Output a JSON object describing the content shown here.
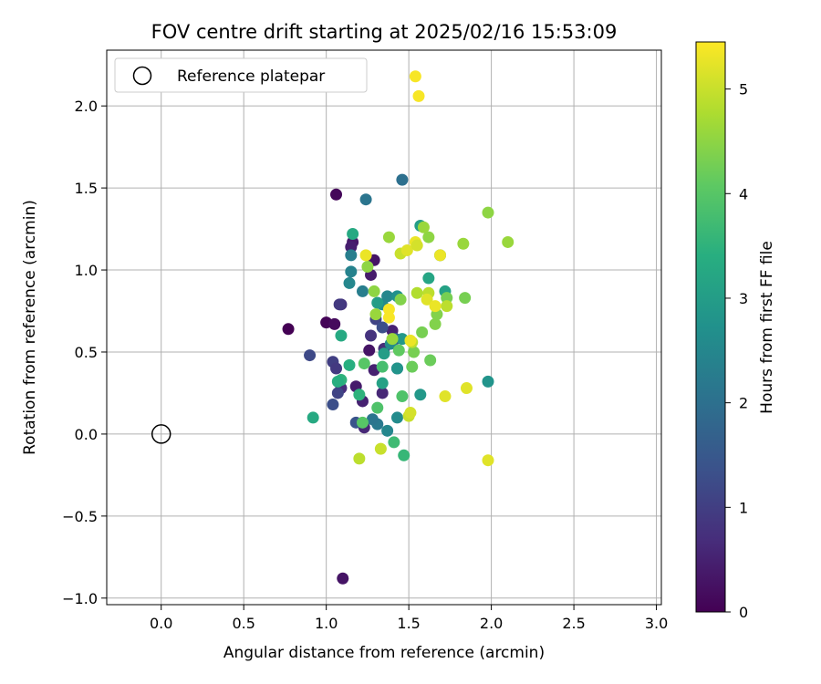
{
  "chart_data": {
    "type": "scatter",
    "title": "FOV centre drift starting at 2025/02/16 15:53:09",
    "xlabel": "Angular distance from reference (arcmin)",
    "ylabel": "Rotation from reference (arcmin)",
    "xlim": [
      -0.33,
      3.03
    ],
    "ylim": [
      -1.04,
      2.34
    ],
    "xticks": [
      0.0,
      0.5,
      1.0,
      1.5,
      2.0,
      2.5,
      3.0
    ],
    "xtick_labels": [
      "0.0",
      "0.5",
      "1.0",
      "1.5",
      "2.0",
      "2.5",
      "3.0"
    ],
    "yticks": [
      -1.0,
      -0.5,
      0.0,
      0.5,
      1.0,
      1.5,
      2.0
    ],
    "ytick_labels": [
      "−1.0",
      "−0.5",
      "0.0",
      "0.5",
      "1.0",
      "1.5",
      "2.0"
    ],
    "grid": true,
    "legend": {
      "position": "top-left",
      "entries": [
        "Reference platepar"
      ]
    },
    "reference_point": {
      "x": 0.0,
      "y": 0.0,
      "marker": "hollow-circle"
    },
    "colorbar": {
      "label": "Hours from first FF file",
      "range": [
        0,
        5.45
      ],
      "ticks": [
        0,
        1,
        2,
        3,
        4,
        5
      ],
      "tick_labels": [
        "0",
        "1",
        "2",
        "3",
        "4",
        "5"
      ],
      "colormap": "viridis"
    },
    "points": [
      {
        "x": 1.06,
        "y": 1.46,
        "h": 0.1
      },
      {
        "x": 0.77,
        "y": 0.64,
        "h": 0.0
      },
      {
        "x": 1.0,
        "y": 0.68,
        "h": 0.05
      },
      {
        "x": 1.05,
        "y": 0.67,
        "h": 0.15
      },
      {
        "x": 1.1,
        "y": -0.88,
        "h": 0.3
      },
      {
        "x": 1.27,
        "y": 0.97,
        "h": 0.4
      },
      {
        "x": 1.29,
        "y": 1.06,
        "h": 0.3
      },
      {
        "x": 1.16,
        "y": 1.17,
        "h": 0.35
      },
      {
        "x": 1.15,
        "y": 1.14,
        "h": 0.45
      },
      {
        "x": 1.09,
        "y": 0.79,
        "h": 0.8
      },
      {
        "x": 1.08,
        "y": 0.79,
        "h": 0.9
      },
      {
        "x": 1.26,
        "y": 0.51,
        "h": 0.3
      },
      {
        "x": 1.29,
        "y": 0.39,
        "h": 0.5
      },
      {
        "x": 1.18,
        "y": 0.29,
        "h": 0.4
      },
      {
        "x": 1.22,
        "y": 0.2,
        "h": 0.5
      },
      {
        "x": 1.23,
        "y": 0.04,
        "h": 0.6
      },
      {
        "x": 1.27,
        "y": 0.6,
        "h": 0.8
      },
      {
        "x": 1.34,
        "y": 0.25,
        "h": 0.6
      },
      {
        "x": 1.4,
        "y": 0.63,
        "h": 0.5
      },
      {
        "x": 1.35,
        "y": 0.52,
        "h": 0.7
      },
      {
        "x": 0.9,
        "y": 0.48,
        "h": 1.2
      },
      {
        "x": 1.04,
        "y": 0.44,
        "h": 1.0
      },
      {
        "x": 1.06,
        "y": 0.4,
        "h": 0.9
      },
      {
        "x": 1.09,
        "y": 0.28,
        "h": 0.7
      },
      {
        "x": 1.07,
        "y": 0.25,
        "h": 1.1
      },
      {
        "x": 1.04,
        "y": 0.18,
        "h": 1.3
      },
      {
        "x": 1.18,
        "y": 0.07,
        "h": 1.4
      },
      {
        "x": 1.3,
        "y": 0.7,
        "h": 1.1
      },
      {
        "x": 1.34,
        "y": 0.65,
        "h": 1.3
      },
      {
        "x": 1.43,
        "y": 0.4,
        "h": 1.4
      },
      {
        "x": 1.42,
        "y": 0.58,
        "h": 1.6
      },
      {
        "x": 1.46,
        "y": 1.55,
        "h": 2.0
      },
      {
        "x": 1.24,
        "y": 1.43,
        "h": 2.1
      },
      {
        "x": 1.15,
        "y": 1.09,
        "h": 2.3
      },
      {
        "x": 1.15,
        "y": 0.99,
        "h": 2.4
      },
      {
        "x": 1.14,
        "y": 0.92,
        "h": 2.5
      },
      {
        "x": 1.22,
        "y": 0.87,
        "h": 2.3
      },
      {
        "x": 1.34,
        "y": 0.79,
        "h": 2.6
      },
      {
        "x": 1.37,
        "y": 0.84,
        "h": 2.5
      },
      {
        "x": 1.43,
        "y": 0.84,
        "h": 2.7
      },
      {
        "x": 1.46,
        "y": 0.58,
        "h": 2.9
      },
      {
        "x": 1.43,
        "y": 0.4,
        "h": 2.8
      },
      {
        "x": 1.39,
        "y": 0.55,
        "h": 2.6
      },
      {
        "x": 1.31,
        "y": 0.06,
        "h": 2.2
      },
      {
        "x": 1.28,
        "y": 0.09,
        "h": 2.1
      },
      {
        "x": 1.37,
        "y": 0.02,
        "h": 2.5
      },
      {
        "x": 1.43,
        "y": 0.1,
        "h": 2.6
      },
      {
        "x": 1.57,
        "y": 0.24,
        "h": 2.9
      },
      {
        "x": 1.57,
        "y": 1.27,
        "h": 3.0
      },
      {
        "x": 1.62,
        "y": 0.95,
        "h": 3.2
      },
      {
        "x": 1.72,
        "y": 0.87,
        "h": 3.1
      },
      {
        "x": 1.98,
        "y": 0.32,
        "h": 2.8
      },
      {
        "x": 1.69,
        "y": 1.09,
        "h": 2.6
      },
      {
        "x": 1.31,
        "y": 0.8,
        "h": 3.0
      },
      {
        "x": 1.35,
        "y": 0.49,
        "h": 3.0
      },
      {
        "x": 1.34,
        "y": 0.31,
        "h": 3.1
      },
      {
        "x": 1.16,
        "y": 1.22,
        "h": 3.3
      },
      {
        "x": 1.09,
        "y": 0.6,
        "h": 3.3
      },
      {
        "x": 1.14,
        "y": 0.42,
        "h": 3.4
      },
      {
        "x": 1.09,
        "y": 0.33,
        "h": 3.5
      },
      {
        "x": 1.07,
        "y": 0.32,
        "h": 3.4
      },
      {
        "x": 0.92,
        "y": 0.1,
        "h": 3.3
      },
      {
        "x": 1.2,
        "y": 0.24,
        "h": 3.5
      },
      {
        "x": 1.47,
        "y": -0.13,
        "h": 3.6
      },
      {
        "x": 1.41,
        "y": -0.05,
        "h": 3.7
      },
      {
        "x": 1.34,
        "y": 0.41,
        "h": 3.8
      },
      {
        "x": 1.46,
        "y": 0.23,
        "h": 3.9
      },
      {
        "x": 1.31,
        "y": 0.16,
        "h": 3.9
      },
      {
        "x": 1.22,
        "y": 0.07,
        "h": 4.0
      },
      {
        "x": 1.23,
        "y": 0.43,
        "h": 4.0
      },
      {
        "x": 1.44,
        "y": 0.51,
        "h": 4.1
      },
      {
        "x": 1.52,
        "y": 0.41,
        "h": 4.2
      },
      {
        "x": 1.53,
        "y": 0.5,
        "h": 4.3
      },
      {
        "x": 1.63,
        "y": 0.45,
        "h": 4.2
      },
      {
        "x": 1.58,
        "y": 0.62,
        "h": 4.3
      },
      {
        "x": 1.66,
        "y": 0.67,
        "h": 4.4
      },
      {
        "x": 1.67,
        "y": 0.73,
        "h": 4.4
      },
      {
        "x": 1.73,
        "y": 0.83,
        "h": 4.3
      },
      {
        "x": 1.84,
        "y": 0.83,
        "h": 4.3
      },
      {
        "x": 1.98,
        "y": 1.35,
        "h": 4.5
      },
      {
        "x": 2.1,
        "y": 1.17,
        "h": 4.6
      },
      {
        "x": 1.83,
        "y": 1.16,
        "h": 4.6
      },
      {
        "x": 1.62,
        "y": 1.2,
        "h": 4.5
      },
      {
        "x": 1.59,
        "y": 1.26,
        "h": 4.6
      },
      {
        "x": 1.38,
        "y": 1.2,
        "h": 4.6
      },
      {
        "x": 1.25,
        "y": 1.02,
        "h": 4.5
      },
      {
        "x": 1.29,
        "y": 0.87,
        "h": 4.5
      },
      {
        "x": 1.45,
        "y": 0.82,
        "h": 4.4
      },
      {
        "x": 1.3,
        "y": 0.73,
        "h": 4.6
      },
      {
        "x": 1.4,
        "y": 0.58,
        "h": 4.6
      },
      {
        "x": 1.55,
        "y": 0.86,
        "h": 4.8
      },
      {
        "x": 1.62,
        "y": 0.86,
        "h": 4.9
      },
      {
        "x": 1.73,
        "y": 0.78,
        "h": 4.9
      },
      {
        "x": 1.52,
        "y": 0.56,
        "h": 4.9
      },
      {
        "x": 1.2,
        "y": -0.15,
        "h": 4.9
      },
      {
        "x": 1.33,
        "y": -0.09,
        "h": 5.0
      },
      {
        "x": 1.5,
        "y": 0.11,
        "h": 5.0
      },
      {
        "x": 1.51,
        "y": 0.13,
        "h": 5.1
      },
      {
        "x": 1.72,
        "y": 0.23,
        "h": 5.2
      },
      {
        "x": 1.85,
        "y": 0.28,
        "h": 5.2
      },
      {
        "x": 1.98,
        "y": -0.16,
        "h": 5.2
      },
      {
        "x": 1.45,
        "y": 1.1,
        "h": 5.0
      },
      {
        "x": 1.49,
        "y": 1.12,
        "h": 5.2
      },
      {
        "x": 1.54,
        "y": 1.17,
        "h": 5.3
      },
      {
        "x": 1.55,
        "y": 1.15,
        "h": 5.1
      },
      {
        "x": 1.69,
        "y": 1.09,
        "h": 5.3
      },
      {
        "x": 1.61,
        "y": 0.82,
        "h": 5.2
      },
      {
        "x": 1.66,
        "y": 0.78,
        "h": 5.3
      },
      {
        "x": 1.38,
        "y": 0.76,
        "h": 5.4
      },
      {
        "x": 1.38,
        "y": 0.71,
        "h": 5.4
      },
      {
        "x": 1.51,
        "y": 0.57,
        "h": 5.3
      },
      {
        "x": 1.54,
        "y": 2.18,
        "h": 5.4
      },
      {
        "x": 1.56,
        "y": 2.06,
        "h": 5.4
      },
      {
        "x": 1.24,
        "y": 1.09,
        "h": 5.3
      }
    ]
  }
}
